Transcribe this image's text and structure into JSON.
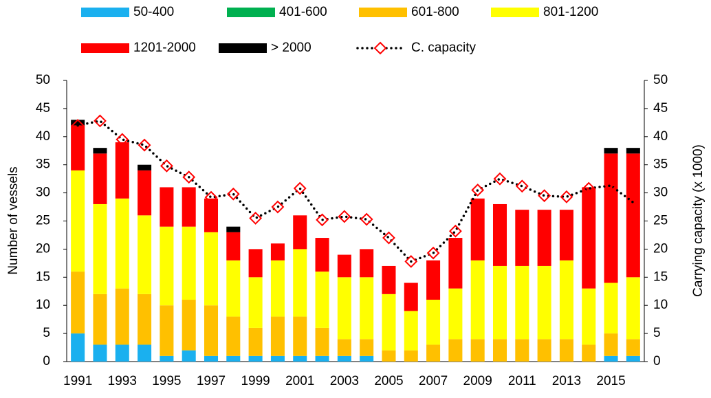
{
  "chart_data": {
    "type": "bar",
    "stacked": true,
    "categories": [
      "1991",
      null,
      "1993",
      null,
      "1995",
      null,
      "1997",
      null,
      "1999",
      null,
      "2001",
      null,
      "2003",
      null,
      "2005",
      null,
      "2007",
      null,
      "2009",
      null,
      "2011",
      null,
      "2013",
      null,
      "2015",
      null
    ],
    "series": [
      {
        "name": "50-400",
        "color": "#1ab0ef",
        "values": [
          5,
          3,
          3,
          3,
          1,
          2,
          1,
          1,
          1,
          1,
          1,
          1,
          1,
          1,
          0,
          0,
          0,
          0,
          0,
          0,
          0,
          0,
          0,
          0,
          1,
          1
        ]
      },
      {
        "name": "401-600",
        "color": "#00b050",
        "values": [
          0,
          0,
          0,
          0,
          0,
          0,
          0,
          0,
          0,
          0,
          0,
          0,
          0,
          0,
          0,
          0,
          0,
          0,
          0,
          0,
          0,
          0,
          0,
          0,
          0,
          0
        ]
      },
      {
        "name": "601-800",
        "color": "#ffc000",
        "values": [
          11,
          9,
          10,
          9,
          9,
          9,
          9,
          7,
          5,
          7,
          7,
          5,
          3,
          3,
          2,
          2,
          3,
          4,
          4,
          4,
          4,
          4,
          4,
          3,
          4,
          3
        ]
      },
      {
        "name": "801-1200",
        "color": "#ffff00",
        "values": [
          18,
          16,
          16,
          14,
          14,
          13,
          13,
          10,
          9,
          10,
          12,
          10,
          11,
          11,
          10,
          7,
          8,
          9,
          14,
          13,
          13,
          13,
          14,
          10,
          9,
          11
        ]
      },
      {
        "name": "1201-2000",
        "color": "#ff0000",
        "values": [
          8,
          9,
          10,
          8,
          7,
          7,
          6,
          5,
          5,
          3,
          6,
          6,
          4,
          5,
          5,
          5,
          7,
          9,
          11,
          11,
          10,
          10,
          9,
          18,
          23,
          22
        ]
      },
      {
        "name": "> 2000",
        "color": "#000000",
        "values": [
          1,
          1,
          0,
          1,
          0,
          0,
          0,
          1,
          0,
          0,
          0,
          0,
          0,
          0,
          0,
          0,
          0,
          0,
          0,
          0,
          0,
          0,
          0,
          0,
          1,
          1
        ]
      },
      {
        "name": "C. capacity",
        "color": "#ff0000",
        "type": "line",
        "axis": "y2",
        "marker": "diamond",
        "values": [
          42,
          42.8,
          39.5,
          38.5,
          34.8,
          32.8,
          29.2,
          29.8,
          25.5,
          27.5,
          30.8,
          25.2,
          25.8,
          25.3,
          22,
          17.8,
          19.3,
          23.2,
          30.5,
          32.5,
          31.2,
          29.5,
          29.3,
          30.8,
          31.3,
          28.3
        ]
      }
    ],
    "ylabel": "Number of vessels",
    "y2label": "Carrying capacity (x 1000)",
    "ylim": [
      0,
      50
    ],
    "yticks": [
      0,
      5,
      10,
      15,
      20,
      25,
      30,
      35,
      40,
      45,
      50
    ],
    "y2lim": [
      0,
      50
    ],
    "y2ticks": [
      0,
      5,
      10,
      15,
      20,
      25,
      30,
      35,
      40,
      45,
      50
    ],
    "grid": false
  }
}
